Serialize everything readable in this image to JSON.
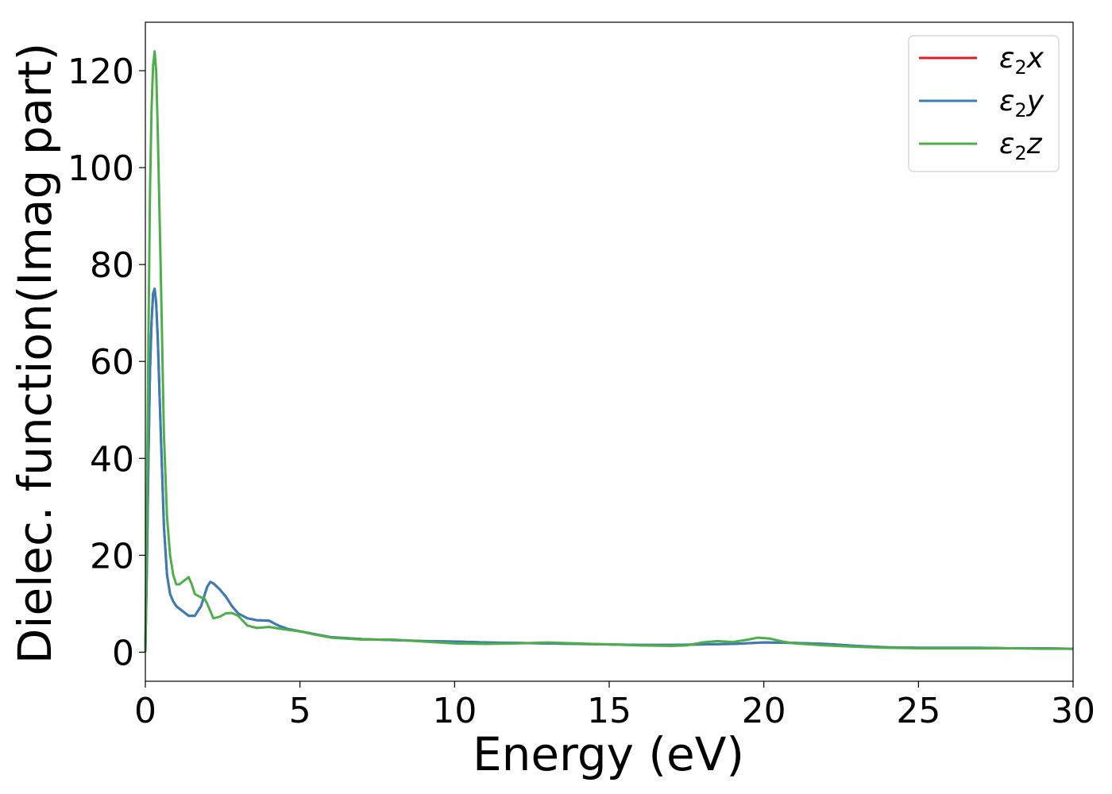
{
  "chart_data": {
    "type": "line",
    "title": "",
    "xlabel": "Energy (eV)",
    "ylabel": "Dielec. function(Imag part)",
    "xlim": [
      0,
      30
    ],
    "ylim": [
      -6,
      130
    ],
    "xticks": [
      0,
      5,
      10,
      15,
      20,
      25,
      30
    ],
    "yticks": [
      0,
      20,
      40,
      60,
      80,
      100,
      120
    ],
    "grid": false,
    "legend_position": "top-right",
    "series": [
      {
        "name": "ε2x",
        "legend": {
          "base": "ε",
          "sub": "2",
          "suffix": "x"
        },
        "color": "#e41a1c",
        "x": [
          0,
          0.05,
          0.1,
          0.15,
          0.2,
          0.25,
          0.3,
          0.35,
          0.4,
          0.5,
          0.6,
          0.7,
          0.8,
          0.9,
          1.0,
          1.2,
          1.4,
          1.6,
          1.8,
          2.0,
          2.1,
          2.2,
          2.4,
          2.6,
          2.8,
          3.0,
          3.3,
          3.6,
          4.0,
          4.3,
          4.6,
          5.0,
          5.5,
          6.0,
          7.0,
          8.0,
          9.0,
          10.0,
          11.0,
          12.0,
          13.0,
          14.0,
          15.0,
          16.0,
          17.0,
          18.0,
          19.0,
          20.0,
          21.0,
          22.0,
          23.0,
          24.0,
          25.0,
          26.0,
          27.0,
          28.0,
          29.0,
          30.0
        ],
        "y": [
          0,
          18,
          40,
          58,
          68,
          74,
          75,
          72,
          65,
          45,
          26,
          16,
          12,
          10.5,
          9.5,
          8.5,
          7.5,
          7.5,
          9.5,
          13.5,
          14.5,
          14.2,
          13,
          11.5,
          9.5,
          8,
          7,
          6.6,
          6.5,
          5.5,
          4.8,
          4.3,
          3.7,
          3.1,
          2.7,
          2.5,
          2.3,
          2.2,
          2.0,
          1.9,
          1.8,
          1.7,
          1.6,
          1.5,
          1.5,
          1.6,
          1.7,
          2.0,
          1.9,
          1.7,
          1.3,
          1.0,
          0.9,
          0.9,
          0.9,
          0.8,
          0.8,
          0.7
        ]
      },
      {
        "name": "ε2y",
        "legend": {
          "base": "ε",
          "sub": "2",
          "suffix": "y"
        },
        "color": "#377eb8",
        "x": [
          0,
          0.05,
          0.1,
          0.15,
          0.2,
          0.25,
          0.3,
          0.35,
          0.4,
          0.5,
          0.6,
          0.7,
          0.8,
          0.9,
          1.0,
          1.2,
          1.4,
          1.6,
          1.8,
          2.0,
          2.1,
          2.2,
          2.4,
          2.6,
          2.8,
          3.0,
          3.3,
          3.6,
          4.0,
          4.3,
          4.6,
          5.0,
          5.5,
          6.0,
          7.0,
          8.0,
          9.0,
          10.0,
          11.0,
          12.0,
          13.0,
          14.0,
          15.0,
          16.0,
          17.0,
          18.0,
          19.0,
          20.0,
          21.0,
          22.0,
          23.0,
          24.0,
          25.0,
          26.0,
          27.0,
          28.0,
          29.0,
          30.0
        ],
        "y": [
          0,
          18,
          40,
          58,
          68,
          74,
          75,
          72,
          65,
          45,
          26,
          16,
          12,
          10.5,
          9.5,
          8.5,
          7.5,
          7.5,
          9.5,
          13.5,
          14.5,
          14.2,
          13,
          11.5,
          9.5,
          8,
          7,
          6.6,
          6.5,
          5.5,
          4.8,
          4.3,
          3.7,
          3.1,
          2.7,
          2.5,
          2.3,
          2.2,
          2.0,
          1.9,
          1.8,
          1.7,
          1.6,
          1.5,
          1.5,
          1.6,
          1.7,
          2.0,
          1.9,
          1.7,
          1.3,
          1.0,
          0.9,
          0.9,
          0.9,
          0.8,
          0.8,
          0.7
        ]
      },
      {
        "name": "ε2z",
        "legend": {
          "base": "ε",
          "sub": "2",
          "suffix": "z"
        },
        "color": "#4daf4a",
        "x": [
          0,
          0.05,
          0.1,
          0.15,
          0.2,
          0.25,
          0.3,
          0.35,
          0.4,
          0.5,
          0.6,
          0.7,
          0.8,
          0.9,
          1.0,
          1.1,
          1.2,
          1.4,
          1.5,
          1.6,
          1.8,
          1.9,
          2.0,
          2.2,
          2.4,
          2.6,
          2.8,
          3.0,
          3.3,
          3.6,
          4.0,
          4.3,
          4.6,
          5.0,
          5.5,
          6.0,
          7.0,
          8.0,
          9.0,
          10.0,
          11.0,
          12.0,
          13.0,
          14.0,
          15.0,
          16.0,
          17.0,
          17.5,
          18.0,
          18.5,
          19.0,
          19.5,
          19.8,
          20.2,
          20.6,
          21.0,
          22.0,
          23.0,
          24.0,
          25.0,
          26.0,
          27.0,
          28.0,
          29.0,
          30.0
        ],
        "y": [
          0,
          30,
          65,
          95,
          112,
          121,
          124,
          120,
          108,
          78,
          45,
          28,
          20,
          16,
          14,
          14,
          14.5,
          15.5,
          14,
          12,
          11.3,
          11.2,
          10,
          7,
          7.3,
          8,
          8.1,
          7.5,
          5.5,
          5,
          5.2,
          4.9,
          4.6,
          4.3,
          3.6,
          3.0,
          2.6,
          2.6,
          2.2,
          1.8,
          1.7,
          1.8,
          2.0,
          1.8,
          1.6,
          1.4,
          1.3,
          1.4,
          2.0,
          2.3,
          2.1,
          2.6,
          3.0,
          2.8,
          2.2,
          1.8,
          1.4,
          1.1,
          0.9,
          0.8,
          0.8,
          0.8,
          0.8,
          0.7,
          0.7
        ]
      }
    ]
  }
}
